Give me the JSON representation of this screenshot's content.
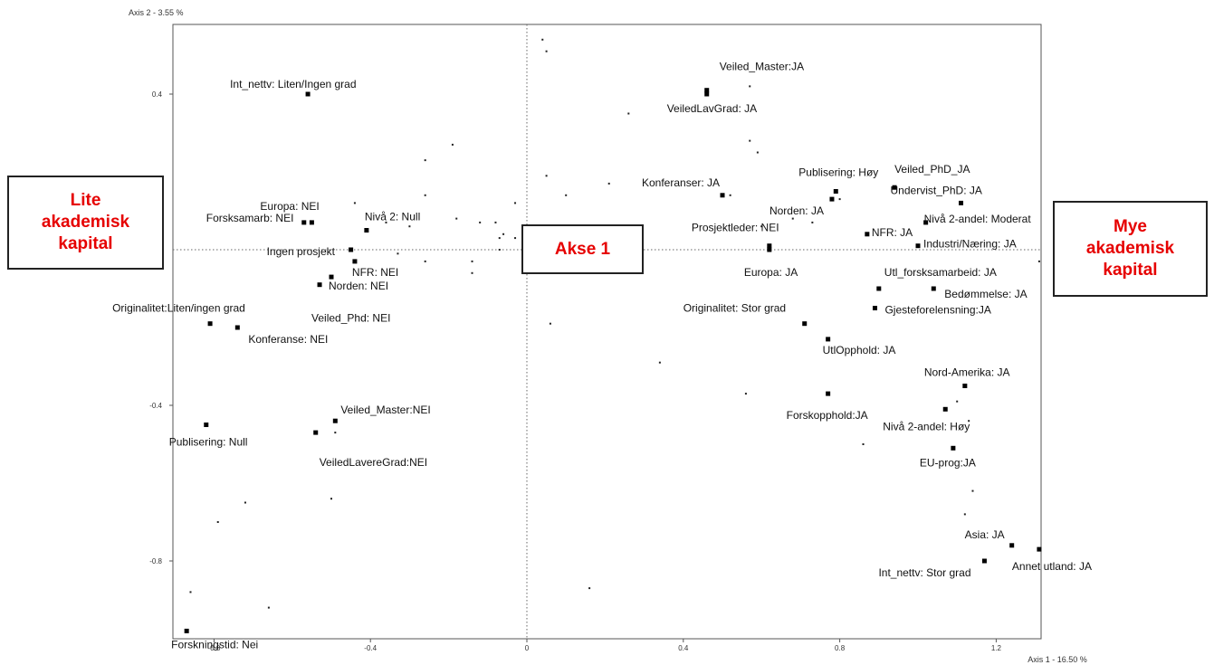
{
  "chart_data": {
    "type": "scatter",
    "xlabel": "Axis 1  -  16.50 %",
    "ylabel": "Axis 2  -  3.55 %",
    "xlim": [
      -0.9,
      1.32
    ],
    "ylim": [
      -1.0,
      0.55
    ],
    "x_ticks": [
      {
        "v": -0.8,
        "t": "-0.8"
      },
      {
        "v": -0.4,
        "t": "-0.4"
      },
      {
        "v": 0,
        "t": "0"
      },
      {
        "v": 0.4,
        "t": "0.4"
      },
      {
        "v": 0.8,
        "t": "0.8"
      },
      {
        "v": 1.2,
        "t": "1.2"
      }
    ],
    "y_ticks": [
      {
        "v": 0.4,
        "t": "0.4"
      },
      {
        "v": -0.4,
        "t": "-0.4"
      },
      {
        "v": -0.8,
        "t": "-0.8"
      }
    ],
    "grid": false,
    "categories": [
      {
        "x": -0.56,
        "y": 0.4,
        "label": "Int_nettv: Liten/Ingen grad"
      },
      {
        "x": -0.55,
        "y": 0.07,
        "label": "Europa: NEI"
      },
      {
        "x": -0.57,
        "y": 0.07,
        "label": "Forsksamarb: NEI"
      },
      {
        "x": -0.41,
        "y": 0.05,
        "label": "Nivå 2: Null"
      },
      {
        "x": -0.45,
        "y": 0.0,
        "label": "Ingen prosjekt"
      },
      {
        "x": -0.44,
        "y": -0.03,
        "label": "NFR: NEI"
      },
      {
        "x": -0.5,
        "y": -0.07,
        "label": "Norden: NEI"
      },
      {
        "x": -0.53,
        "y": -0.09,
        "label": "Veiled_Phd: NEI"
      },
      {
        "x": -0.81,
        "y": -0.19,
        "label": "Originalitet:Liten/ingen grad"
      },
      {
        "x": -0.74,
        "y": -0.2,
        "label": "Konferanse: NEI"
      },
      {
        "x": -0.49,
        "y": -0.44,
        "label": "Veiled_Master:NEI"
      },
      {
        "x": -0.54,
        "y": -0.47,
        "label": "VeiledLavereGrad:NEI"
      },
      {
        "x": -0.82,
        "y": -0.45,
        "label": "Publisering: Null"
      },
      {
        "x": -0.87,
        "y": -0.98,
        "label": "Forskningstid: Nei"
      },
      {
        "x": 0.46,
        "y": 0.41,
        "label": "Veiled_Master:JA"
      },
      {
        "x": 0.46,
        "y": 0.4,
        "label": "VeiledLavGrad: JA"
      },
      {
        "x": 0.5,
        "y": 0.14,
        "label": "Konferanser: JA"
      },
      {
        "x": 0.79,
        "y": 0.15,
        "label": "Publisering: Høy"
      },
      {
        "x": 0.94,
        "y": 0.16,
        "label": "Veiled_PhD_JA"
      },
      {
        "x": 0.78,
        "y": 0.13,
        "label": "Norden: JA"
      },
      {
        "x": 1.11,
        "y": 0.12,
        "label": "Undervist_PhD: JA"
      },
      {
        "x": 1.02,
        "y": 0.07,
        "label": "Nivå 2-andel: Moderat"
      },
      {
        "x": 0.87,
        "y": 0.04,
        "label": "NFR: JA"
      },
      {
        "x": 0.62,
        "y": 0.01,
        "label": "Prosjektleder: NEI"
      },
      {
        "x": 1.0,
        "y": 0.01,
        "label": "Industri/Næring: JA"
      },
      {
        "x": 0.62,
        "y": 0.0,
        "label": "Europa: JA"
      },
      {
        "x": 0.9,
        "y": -0.1,
        "label": "Utl_forsksamarbeid: JA"
      },
      {
        "x": 1.04,
        "y": -0.1,
        "label": "Bedømmelse: JA"
      },
      {
        "x": 0.89,
        "y": -0.15,
        "label": "Gjesteforelensning:JA"
      },
      {
        "x": 0.71,
        "y": -0.19,
        "label": "Originalitet: Stor grad"
      },
      {
        "x": 0.77,
        "y": -0.23,
        "label": "UtlOpphold: JA"
      },
      {
        "x": 1.12,
        "y": -0.35,
        "label": "Nord-Amerika: JA"
      },
      {
        "x": 0.77,
        "y": -0.37,
        "label": "Forskopphold:JA"
      },
      {
        "x": 1.07,
        "y": -0.41,
        "label": "Nivå 2-andel: Høy"
      },
      {
        "x": 1.09,
        "y": -0.51,
        "label": "EU-prog:JA"
      },
      {
        "x": 1.24,
        "y": -0.76,
        "label": "Asia: JA"
      },
      {
        "x": 1.17,
        "y": -0.8,
        "label": "Int_nettv: Stor grad"
      },
      {
        "x": 1.31,
        "y": -0.77,
        "label": "Annet utland: JA"
      }
    ],
    "small_points": [
      [
        0.04,
        0.54
      ],
      [
        0.05,
        0.51
      ],
      [
        0.26,
        0.35
      ],
      [
        0.57,
        0.42
      ],
      [
        0.57,
        0.28
      ],
      [
        0.59,
        0.25
      ],
      [
        0.05,
        0.19
      ],
      [
        0.1,
        0.14
      ],
      [
        0.21,
        0.17
      ],
      [
        0.52,
        0.14
      ],
      [
        0.68,
        0.08
      ],
      [
        0.73,
        0.07
      ],
      [
        0.8,
        0.13
      ],
      [
        0.6,
        0.06
      ],
      [
        -0.19,
        0.27
      ],
      [
        -0.26,
        0.23
      ],
      [
        -0.26,
        0.14
      ],
      [
        -0.44,
        0.12
      ],
      [
        -0.36,
        0.07
      ],
      [
        -0.3,
        0.06
      ],
      [
        -0.18,
        0.08
      ],
      [
        -0.12,
        0.07
      ],
      [
        -0.08,
        0.07
      ],
      [
        -0.06,
        0.04
      ],
      [
        -0.03,
        0.03
      ],
      [
        -0.07,
        0.03
      ],
      [
        -0.03,
        0.12
      ],
      [
        -0.07,
        0.0
      ],
      [
        -0.33,
        -0.01
      ],
      [
        -0.26,
        -0.03
      ],
      [
        -0.14,
        -0.03
      ],
      [
        -0.14,
        -0.06
      ],
      [
        0.06,
        -0.19
      ],
      [
        0.34,
        -0.29
      ],
      [
        0.56,
        -0.37
      ],
      [
        0.86,
        -0.5
      ],
      [
        1.1,
        -0.39
      ],
      [
        1.13,
        -0.44
      ],
      [
        1.14,
        -0.62
      ],
      [
        1.12,
        -0.68
      ],
      [
        0.16,
        -0.87
      ],
      [
        -0.5,
        -0.64
      ],
      [
        -0.72,
        -0.65
      ],
      [
        -0.79,
        -0.7
      ],
      [
        -0.86,
        -0.88
      ],
      [
        -0.66,
        -0.92
      ],
      [
        -0.49,
        -0.47
      ],
      [
        1.31,
        -0.03
      ]
    ]
  },
  "annotations": {
    "left_box": "Lite\nakademisk\nkapital",
    "center_box": "Akse 1",
    "right_box": "Mye\nakademisk\nkapital"
  }
}
